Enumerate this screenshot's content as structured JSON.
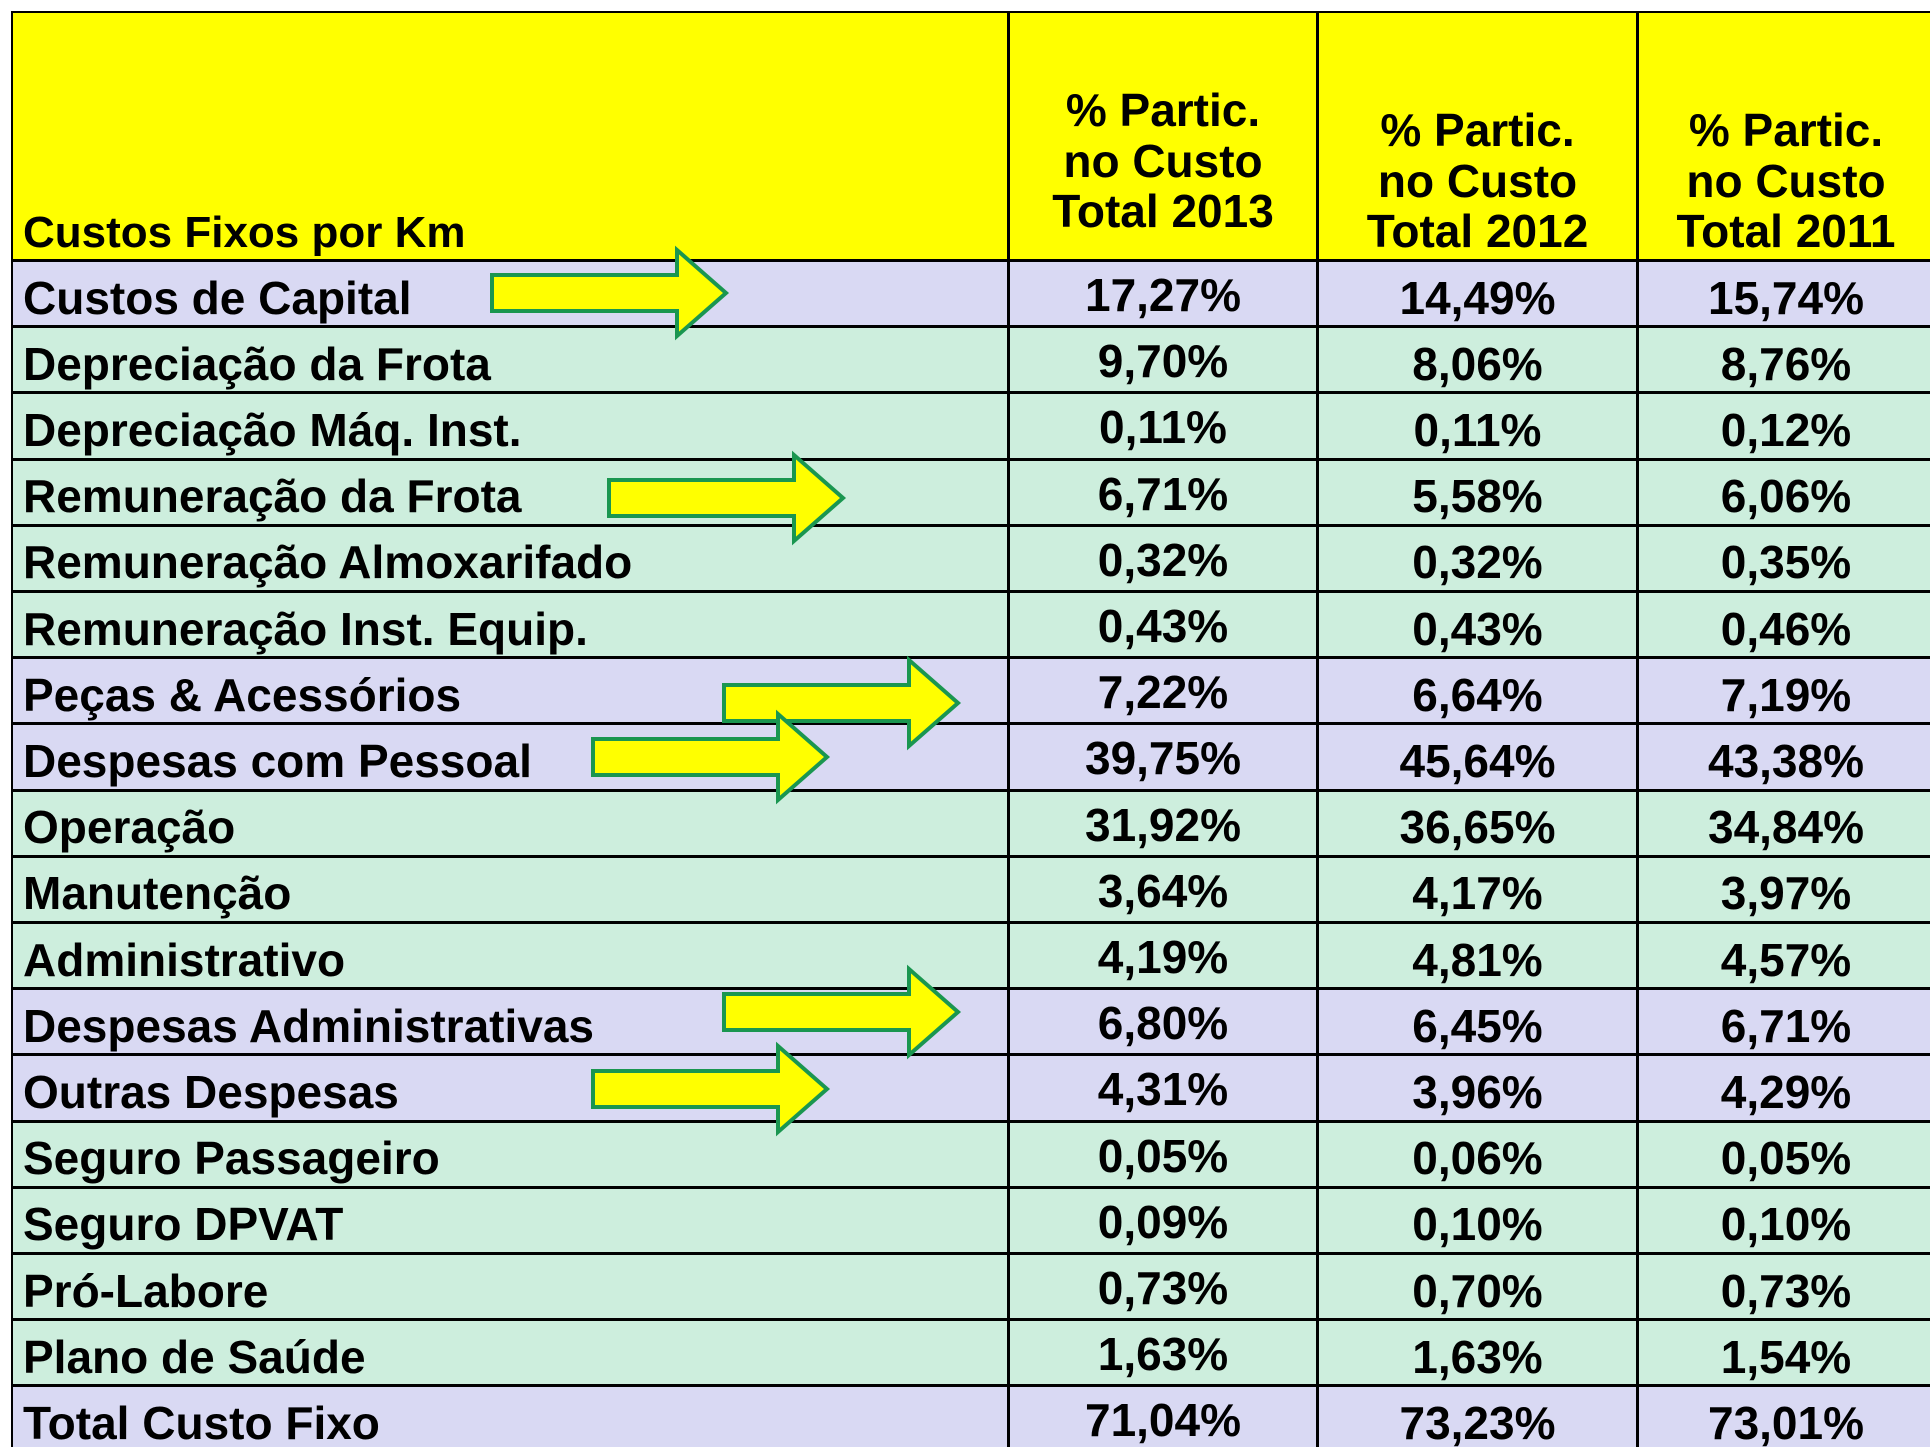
{
  "table": {
    "header": [
      "Custos Fixos por Km",
      "% Partic.\nno Custo\nTotal 2013",
      "% Partic.\nno Custo\nTotal 2012",
      "% Partic.\nno Custo\nTotal 2011"
    ],
    "rows": [
      [
        "Custos de Capital",
        "17,27%",
        "14,49%",
        "15,74%"
      ],
      [
        "Depreciação da Frota",
        "9,70%",
        "8,06%",
        "8,76%"
      ],
      [
        "Depreciação Máq. Inst.",
        "0,11%",
        "0,11%",
        "0,12%"
      ],
      [
        "Remuneração da Frota",
        "6,71%",
        "5,58%",
        "6,06%"
      ],
      [
        "Remuneração Almoxarifado",
        "0,32%",
        "0,32%",
        "0,35%"
      ],
      [
        "Remuneração Inst. Equip.",
        "0,43%",
        "0,43%",
        "0,46%"
      ],
      [
        "Peças & Acessórios",
        "7,22%",
        "6,64%",
        "7,19%"
      ],
      [
        "Despesas com Pessoal",
        "39,75%",
        "45,64%",
        "43,38%"
      ],
      [
        "Operação",
        "31,92%",
        "36,65%",
        "34,84%"
      ],
      [
        "Manutenção",
        "3,64%",
        "4,17%",
        "3,97%"
      ],
      [
        "Administrativo",
        "4,19%",
        "4,81%",
        "4,57%"
      ],
      [
        "Despesas Administrativas",
        "6,80%",
        "6,45%",
        "6,71%"
      ],
      [
        "Outras Despesas",
        "4,31%",
        "3,96%",
        "4,29%"
      ],
      [
        "Seguro Passageiro",
        "0,05%",
        "0,06%",
        "0,05%"
      ],
      [
        "Seguro DPVAT",
        "0,09%",
        "0,10%",
        "0,10%"
      ],
      [
        "Pró-Labore",
        "0,73%",
        "0,70%",
        "0,73%"
      ],
      [
        "Plano de Saúde",
        "1,63%",
        "1,63%",
        "1,54%"
      ],
      [
        "Total Custo Fixo",
        "71,04%",
        "73,23%",
        "73,01%"
      ]
    ]
  }
}
